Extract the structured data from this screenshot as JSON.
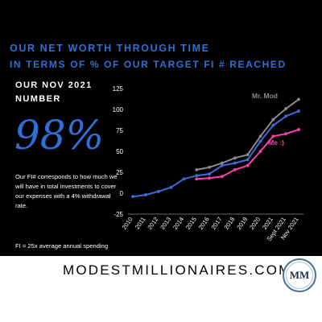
{
  "header": {
    "title_line1": "OUR NET WORTH THROUGH TIME",
    "title_line2": "IN TERMS OF % OF OUR TARGET FI # REACHED"
  },
  "left_panel": {
    "heading_line1": "OUR NOV 2021",
    "heading_line2": "NUMBER",
    "big_value": "98%",
    "description": "Our FI# corresponds to how much we will have in total investments to cover our expenses with a 4%  withdrawal rate.",
    "note": "FI = 25x average annual spending"
  },
  "footer": {
    "site": "MODESTMILLIONAIRES.COM",
    "logo_text": "MM"
  },
  "colors": {
    "background": "#000000",
    "accent_blue": "#2f6fd6",
    "series_total": "#3a6fd8",
    "series_mr_mod": "#8a8a8a",
    "series_me": "#ff3fb0"
  },
  "chart_data": {
    "type": "line",
    "categories": [
      "2010",
      "2011",
      "2012",
      "2013",
      "2014",
      "2015",
      "2016",
      "2017",
      "2018",
      "2019",
      "2020",
      "2021",
      "Sept 2021",
      "Nov 2021"
    ],
    "ylim": [
      -25,
      125
    ],
    "yticks": [
      -25,
      0,
      25,
      50,
      75,
      100,
      125
    ],
    "grid": false,
    "legend": "inline labels",
    "series": [
      {
        "name": "",
        "color": "#3a6fd8",
        "values": [
          -4,
          -2,
          2,
          7,
          17,
          21,
          23,
          33,
          36,
          40,
          62,
          81,
          92,
          98
        ]
      },
      {
        "name": "Mr. Mod",
        "color": "#8a8a8a",
        "values": [
          null,
          null,
          null,
          null,
          null,
          28,
          31,
          36,
          42,
          46,
          68,
          88,
          101,
          112
        ]
      },
      {
        "name": "Me :)",
        "color": "#ff3fb0",
        "values": [
          null,
          null,
          null,
          null,
          null,
          17,
          18,
          20,
          28,
          33,
          50,
          68,
          71,
          76
        ]
      }
    ]
  }
}
